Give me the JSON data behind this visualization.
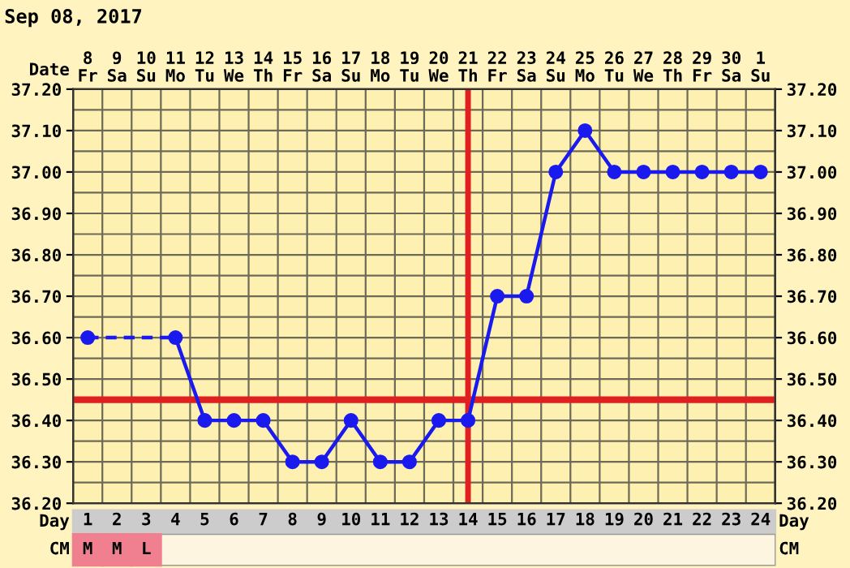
{
  "chart_data": {
    "type": "line",
    "title": "Sep 08, 2017",
    "xlabel": "Day",
    "x2label": "Date",
    "categories": [
      "1",
      "2",
      "3",
      "4",
      "5",
      "6",
      "7",
      "8",
      "9",
      "10",
      "11",
      "12",
      "13",
      "14",
      "15",
      "16",
      "17",
      "18",
      "19",
      "20",
      "21",
      "22",
      "23",
      "24"
    ],
    "series": [
      {
        "color": "#1a1aee",
        "values": [
          36.6,
          null,
          null,
          36.6,
          36.4,
          36.4,
          36.4,
          36.3,
          36.3,
          36.4,
          36.3,
          36.3,
          36.4,
          36.4,
          36.7,
          36.7,
          37.0,
          37.1,
          37.0,
          37.0,
          37.0,
          37.0,
          37.0,
          37.0
        ]
      }
    ],
    "marker": "circle",
    "ylim": [
      36.2,
      37.2
    ],
    "yticks": [
      {
        "value": 36.2,
        "label": "36.20"
      },
      {
        "value": 36.3,
        "label": "36.30"
      },
      {
        "value": 36.4,
        "label": "36.40"
      },
      {
        "value": 36.5,
        "label": "36.50"
      },
      {
        "value": 36.6,
        "label": "36.60"
      },
      {
        "value": 36.7,
        "label": "36.70"
      },
      {
        "value": 36.8,
        "label": "36.80"
      },
      {
        "value": 36.9,
        "label": "36.90"
      },
      {
        "value": 37.0,
        "label": "37.00"
      },
      {
        "value": 37.1,
        "label": "37.10"
      },
      {
        "value": 37.2,
        "label": "37.20"
      }
    ],
    "y2lim": [
      36.2,
      37.2
    ],
    "y2ticks": [
      {
        "value": 36.2,
        "label": "36.20"
      },
      {
        "value": 36.3,
        "label": "36.30"
      },
      {
        "value": 36.4,
        "label": "36.40"
      },
      {
        "value": 36.5,
        "label": "36.50"
      },
      {
        "value": 36.6,
        "label": "36.60"
      },
      {
        "value": 36.7,
        "label": "36.70"
      },
      {
        "value": 36.8,
        "label": "36.80"
      },
      {
        "value": 36.9,
        "label": "36.90"
      },
      {
        "value": 37.0,
        "label": "37.00"
      },
      {
        "value": 37.1,
        "label": "37.10"
      },
      {
        "value": 37.2,
        "label": "37.20"
      }
    ],
    "grid": true,
    "ref_lines": [
      {
        "axis": "y",
        "value": 36.45,
        "color": "#e02020"
      },
      {
        "axis": "x",
        "value": "14",
        "color": "#e02020"
      }
    ],
    "annotations": [
      "8\nFr",
      "9\nSa",
      "10\nSu",
      "11\nMo",
      "12\nTu",
      "13\nWe",
      "14\nTh",
      "15\nFr",
      "16\nSa",
      "17\nSu",
      "18\nMo",
      "19\nTu",
      "20\nWe",
      "21\nTh",
      "22\nFr",
      "23\nSa",
      "24\nSu",
      "25\nMo",
      "26\nTu",
      "27\nWe",
      "28\nTh",
      "29\nFr",
      "30\nSa",
      "1\nSu",
      "CM",
      "M",
      "M",
      "L"
    ]
  }
}
